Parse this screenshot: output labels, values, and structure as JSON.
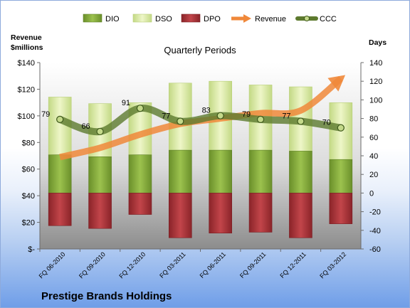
{
  "company": "Prestige Brands Holdings",
  "legend": {
    "dio": "DIO",
    "dso": "DSO",
    "dpo": "DPO",
    "revenue": "Revenue",
    "ccc": "CCC"
  },
  "colors": {
    "dio": "#7ea23a",
    "dso": "#d9ea9c",
    "dpo": "#a3343a",
    "revenue": "#f0883a",
    "ccc": "#5d7a2e"
  },
  "chart_data": {
    "type": "bar",
    "title": "Quarterly Periods",
    "left_axis_title": [
      "Revenue",
      "$millions"
    ],
    "right_axis_title": "Days",
    "left_axis": {
      "ylim": [
        0,
        140
      ],
      "ticks": [
        0,
        20,
        40,
        60,
        80,
        100,
        120,
        140
      ],
      "tick_labels": [
        "$-",
        "$20",
        "$40",
        "$60",
        "$80",
        "$100",
        "$120",
        "$140"
      ]
    },
    "right_axis": {
      "ylim": [
        -60,
        140
      ],
      "ticks": [
        -60,
        -40,
        -20,
        0,
        20,
        40,
        60,
        80,
        100,
        120,
        140
      ]
    },
    "categories": [
      "FQ 06-2010",
      "FQ 09-2010",
      "FQ 12-2010",
      "FQ 03-2011",
      "FQ 06-2011",
      "FQ 09-2011",
      "FQ 12-2011",
      "FQ 03-2012"
    ],
    "series": [
      {
        "name": "DIO",
        "axis": "right",
        "values": [
          41,
          39,
          41,
          46,
          46,
          46,
          45,
          36
        ]
      },
      {
        "name": "DSO",
        "axis": "right",
        "values": [
          62,
          57,
          56,
          72,
          74,
          70,
          69,
          61
        ]
      },
      {
        "name": "DPO",
        "axis": "right",
        "values": [
          -35,
          -38,
          -23,
          -48,
          -43,
          -42,
          -48,
          -33
        ]
      },
      {
        "name": "Revenue",
        "axis": "left",
        "values": [
          69,
          76,
          86,
          94,
          98,
          102,
          104,
          128
        ]
      },
      {
        "name": "CCC",
        "axis": "right",
        "values": [
          79,
          66,
          91,
          77,
          83,
          79,
          77,
          70
        ],
        "data_labels": [
          "79",
          "66",
          "91",
          "77",
          "83",
          "79",
          "77",
          "70"
        ]
      }
    ],
    "grid": false,
    "legend_position": "top"
  }
}
